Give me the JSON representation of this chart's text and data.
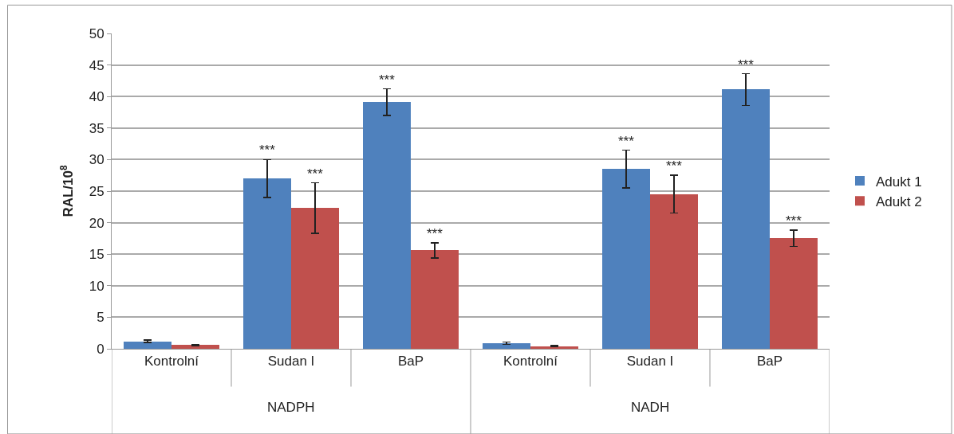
{
  "chart_data": {
    "type": "bar",
    "ylabel": "RAL/10$^{8}$",
    "categories": [
      "Kontrolní",
      "Sudan I",
      "BaP",
      "Kontrolní",
      "Sudan I",
      "BaP"
    ],
    "annotations": [
      "NADPH",
      "NADH"
    ],
    "series": [
      {
        "name": "Adukt 1",
        "color": "#4f81bd",
        "values": [
          1.2,
          27,
          39.1,
          0.9,
          28.5,
          41.1
        ],
        "errors": [
          0.2,
          3,
          2.1,
          0.2,
          3,
          2.5
        ],
        "value_labels": [
          null,
          "***",
          "***",
          null,
          "***",
          "***"
        ]
      },
      {
        "name": "Adukt 2",
        "color": "#c0504d",
        "values": [
          0.6,
          22.3,
          15.6,
          0.4,
          24.5,
          17.5
        ],
        "errors": [
          0.1,
          4,
          1.2,
          0.1,
          3,
          1.3
        ],
        "value_labels": [
          null,
          "***",
          "***",
          null,
          "***",
          "***"
        ]
      }
    ],
    "ylim": [
      0,
      50
    ],
    "yticks": [
      0,
      5,
      10,
      15,
      20,
      25,
      30,
      35,
      40,
      45,
      50
    ],
    "grid": "y",
    "legend": "right"
  }
}
